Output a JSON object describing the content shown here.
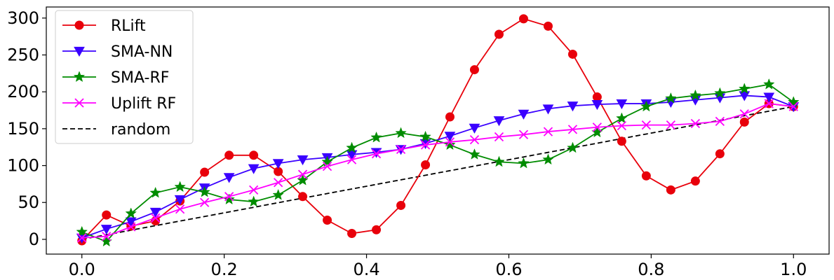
{
  "chart_data": {
    "type": "line",
    "title": "",
    "xlabel": "",
    "ylabel": "",
    "xlim": [
      -0.05,
      1.05
    ],
    "ylim": [
      -20,
      315
    ],
    "xticks": [
      0.0,
      0.2,
      0.4,
      0.6,
      0.8,
      1.0
    ],
    "xtick_labels": [
      "0.0",
      "0.2",
      "0.4",
      "0.6",
      "0.8",
      "1.0"
    ],
    "yticks": [
      0,
      50,
      100,
      150,
      200,
      250,
      300
    ],
    "ytick_labels": [
      "0",
      "50",
      "100",
      "150",
      "200",
      "250",
      "300"
    ],
    "grid": false,
    "legend_position": "top-left",
    "x": [
      0.0,
      0.0345,
      0.069,
      0.1034,
      0.1379,
      0.1724,
      0.2069,
      0.2414,
      0.2759,
      0.3103,
      0.3448,
      0.3793,
      0.4138,
      0.4483,
      0.4828,
      0.5172,
      0.5517,
      0.5862,
      0.6207,
      0.6552,
      0.6897,
      0.7241,
      0.7586,
      0.7931,
      0.8276,
      0.8621,
      0.8966,
      0.931,
      0.9655,
      1.0
    ],
    "series": [
      {
        "name": "RLift",
        "color": "#e8000b",
        "marker": "circle",
        "linestyle": "solid",
        "values": [
          -2,
          33,
          18,
          25,
          52,
          91,
          114,
          114,
          92,
          58,
          26,
          8,
          13,
          46,
          101,
          166,
          230,
          278,
          299,
          289,
          251,
          193,
          133,
          86,
          67,
          79,
          116,
          159,
          184,
          180
        ]
      },
      {
        "name": "SMA-NN",
        "color": "#3a00ff",
        "marker": "triangle-down",
        "linestyle": "solid",
        "values": [
          2,
          14,
          24,
          37,
          54,
          70,
          84,
          96,
          103,
          108,
          111,
          115,
          118,
          122,
          130,
          140,
          151,
          161,
          170,
          177,
          181,
          183,
          184,
          184,
          186,
          189,
          192,
          195,
          193,
          180
        ]
      },
      {
        "name": "SMA-RF",
        "color": "#008c00",
        "marker": "star",
        "linestyle": "solid",
        "values": [
          10,
          -3,
          35,
          63,
          71,
          64,
          54,
          51,
          60,
          80,
          105,
          124,
          138,
          144,
          139,
          128,
          115,
          105,
          103,
          108,
          124,
          145,
          164,
          180,
          191,
          195,
          198,
          204,
          210,
          186
        ]
      },
      {
        "name": "Uplift RF",
        "color": "#ff00ff",
        "marker": "x",
        "linestyle": "solid",
        "values": [
          2,
          4,
          17,
          29,
          41,
          50,
          58,
          67,
          77,
          88,
          99,
          108,
          116,
          122,
          128,
          132,
          135,
          139,
          142,
          146,
          149,
          152,
          154,
          155,
          155,
          157,
          160,
          170,
          184,
          180
        ]
      },
      {
        "name": "random",
        "color": "#000000",
        "marker": "none",
        "linestyle": "dashed",
        "values": [
          0,
          6.2,
          12.4,
          18.6,
          24.8,
          31.0,
          37.2,
          43.4,
          49.7,
          55.9,
          62.1,
          68.3,
          74.5,
          80.7,
          86.9,
          93.1,
          99.3,
          105.5,
          111.7,
          117.9,
          124.1,
          130.3,
          136.6,
          142.8,
          149.0,
          155.2,
          161.4,
          167.6,
          173.8,
          180
        ]
      }
    ]
  }
}
